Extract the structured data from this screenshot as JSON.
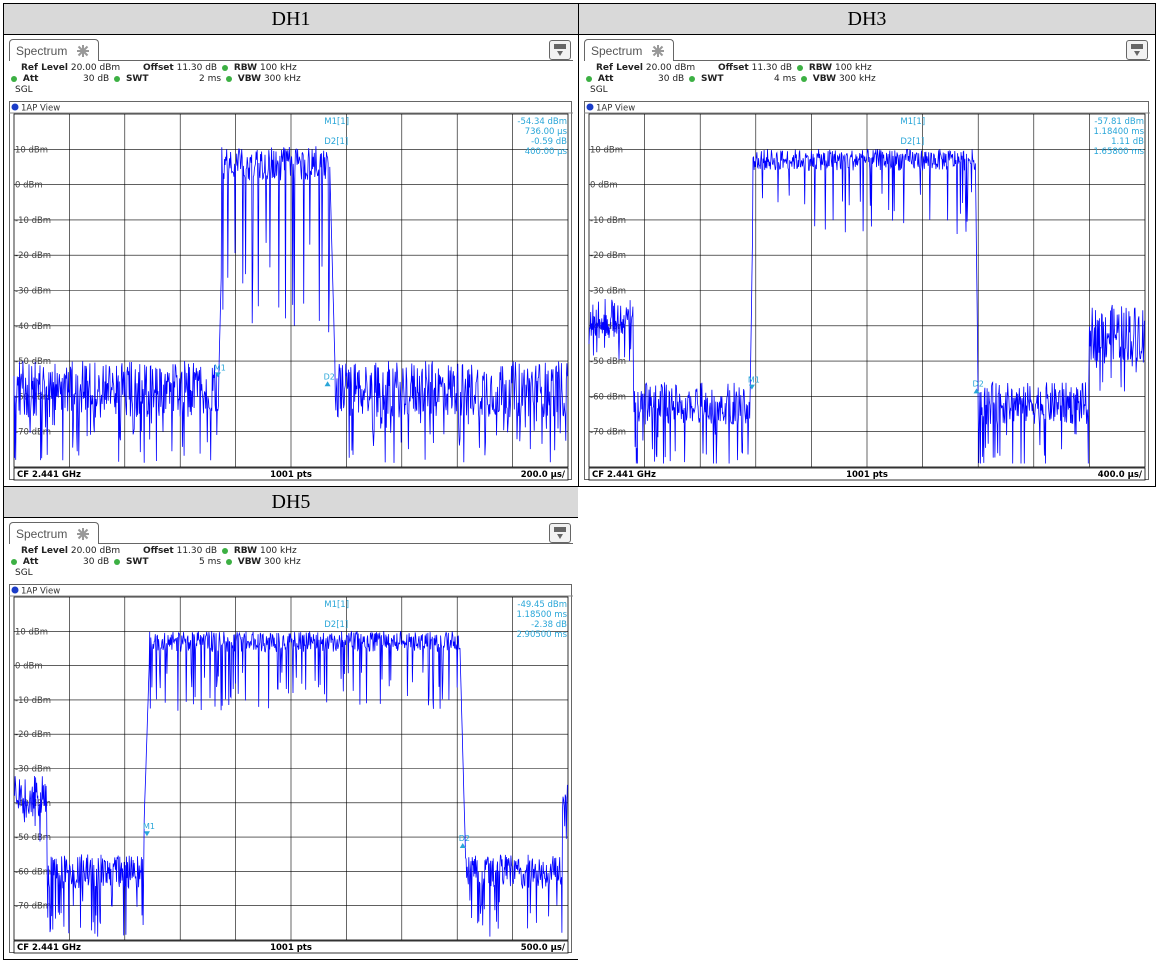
{
  "cells": [
    {
      "title": "DH1",
      "tab_label": "Spectrum",
      "ref_level_label": "Ref Level",
      "ref_level_value": "20.00 dBm",
      "offset_label": "Offset",
      "offset_value": "11.30 dB",
      "rbw_label": "RBW",
      "rbw_value": "100 kHz",
      "att_label": "Att",
      "att_value": "30 dB",
      "swt_label": "SWT",
      "swt_value": "2 ms",
      "vbw_label": "VBW",
      "vbw_value": "300 kHz",
      "mode_label": "SGL",
      "view_label": "1AP View",
      "cf_label": "CF 2.441 GHz",
      "pts_label": "1001 pts",
      "div_label": "200.0 µs/",
      "readout": {
        "m1_label": "M1[1]",
        "m1_level": "-54.34 dBm",
        "m1_time": "736.00 µs",
        "d2_label": "D2[1]",
        "d2_level": "-0.59 dB",
        "d2_time": "400.00 µs"
      },
      "chart_data": {
        "type": "line",
        "y_tick_labels": [
          "10 dBm",
          "0 dBm",
          "-10 dBm",
          "-20 dBm",
          "-30 dBm",
          "-40 dBm",
          "-50 dBm",
          "-60 dBm",
          "-70 dBm"
        ],
        "y_ticks": [
          10,
          0,
          -10,
          -20,
          -30,
          -40,
          -50,
          -60,
          -70
        ],
        "ylim": [
          -80,
          20
        ],
        "x_divisions": 10,
        "x_per_div": "200.0 µs/",
        "series": [
          {
            "segments": [
              {
                "from": 0.0,
                "to": 0.37,
                "mean": -58,
                "spread": 8,
                "dips": -15
              },
              {
                "from": 0.37,
                "to": 0.375,
                "ramp": [
                  -52,
                  -20
                ]
              },
              {
                "from": 0.375,
                "to": 0.57,
                "mean": 6,
                "spread": 5,
                "dips": -35
              },
              {
                "from": 0.57,
                "to": 0.58,
                "ramp": [
                  5,
                  -55
                ]
              },
              {
                "from": 0.58,
                "to": 1.0,
                "mean": -58,
                "spread": 8,
                "dips": -15
              }
            ],
            "color": "#0000ff"
          }
        ],
        "markers": [
          {
            "label": "M1",
            "x_frac": 0.368,
            "level": -54.34,
            "dir": "down"
          },
          {
            "label": "D2",
            "x_frac": 0.566,
            "level": -56,
            "dir": "up"
          }
        ],
        "marker_labels": {
          "M1": "M1",
          "D2": "D2"
        }
      }
    },
    {
      "title": "DH3",
      "tab_label": "Spectrum",
      "ref_level_label": "Ref Level",
      "ref_level_value": "20.00 dBm",
      "offset_label": "Offset",
      "offset_value": "11.30 dB",
      "rbw_label": "RBW",
      "rbw_value": "100 kHz",
      "att_label": "Att",
      "att_value": "30 dB",
      "swt_label": "SWT",
      "swt_value": "4 ms",
      "vbw_label": "VBW",
      "vbw_value": "300 kHz",
      "mode_label": "SGL",
      "view_label": "1AP View",
      "cf_label": "CF 2.441 GHz",
      "pts_label": "1001 pts",
      "div_label": "400.0 µs/",
      "readout": {
        "m1_label": "M1[1]",
        "m1_level": "-57.81 dBm",
        "m1_time": "1.18400 ms",
        "d2_label": "D2[1]",
        "d2_level": "1.11 dB",
        "d2_time": "1.65800 ms"
      },
      "chart_data": {
        "type": "line",
        "y_tick_labels": [
          "10 dBm",
          "0 dBm",
          "-10 dBm",
          "-20 dBm",
          "-30 dBm",
          "-40 dBm",
          "-50 dBm",
          "-60 dBm",
          "-70 dBm"
        ],
        "y_ticks": [
          10,
          0,
          -10,
          -20,
          -30,
          -40,
          -50,
          -60,
          -70
        ],
        "ylim": [
          -80,
          20
        ],
        "x_divisions": 10,
        "x_per_div": "400.0 µs/",
        "series": [
          {
            "segments": [
              {
                "from": 0.0,
                "to": 0.08,
                "mean": -38,
                "spread": 6,
                "dips": -10
              },
              {
                "from": 0.08,
                "to": 0.29,
                "mean": -62,
                "spread": 6,
                "dips": -14
              },
              {
                "from": 0.29,
                "to": 0.295,
                "ramp": [
                  -58,
                  -5
                ]
              },
              {
                "from": 0.295,
                "to": 0.695,
                "mean": 7,
                "spread": 3,
                "dips": -15
              },
              {
                "from": 0.695,
                "to": 0.7,
                "ramp": [
                  6,
                  -60
                ]
              },
              {
                "from": 0.7,
                "to": 0.9,
                "mean": -62,
                "spread": 6,
                "dips": -14
              },
              {
                "from": 0.9,
                "to": 1.0,
                "mean": -42,
                "spread": 8,
                "dips": -12
              }
            ],
            "color": "#0000ff"
          }
        ],
        "markers": [
          {
            "label": "M1",
            "x_frac": 0.293,
            "level": -57.81,
            "dir": "down"
          },
          {
            "label": "D2",
            "x_frac": 0.697,
            "level": -58,
            "dir": "up"
          }
        ],
        "marker_labels": {
          "M1": "M1",
          "D2": "D2"
        }
      }
    },
    {
      "title": "DH5",
      "tab_label": "Spectrum",
      "ref_level_label": "Ref Level",
      "ref_level_value": "20.00 dBm",
      "offset_label": "Offset",
      "offset_value": "11.30 dB",
      "rbw_label": "RBW",
      "rbw_value": "100 kHz",
      "att_label": "Att",
      "att_value": "30 dB",
      "swt_label": "SWT",
      "swt_value": "5 ms",
      "vbw_label": "VBW",
      "vbw_value": "300 kHz",
      "mode_label": "SGL",
      "view_label": "1AP View",
      "cf_label": "CF 2.441 GHz",
      "pts_label": "1001 pts",
      "div_label": "500.0 µs/",
      "readout": {
        "m1_label": "M1[1]",
        "m1_level": "-49.45 dBm",
        "m1_time": "1.18500 ms",
        "d2_label": "D2[1]",
        "d2_level": "-2.38 dB",
        "d2_time": "2.90500 ms"
      },
      "chart_data": {
        "type": "line",
        "y_tick_labels": [
          "10 dBm",
          "0 dBm",
          "-10 dBm",
          "-20 dBm",
          "-30 dBm",
          "-40 dBm",
          "-50 dBm",
          "-60 dBm",
          "-70 dBm"
        ],
        "y_ticks": [
          10,
          0,
          -10,
          -20,
          -30,
          -40,
          -50,
          -60,
          -70
        ],
        "ylim": [
          -80,
          20
        ],
        "x_divisions": 10,
        "x_per_div": "500.0 µs/",
        "series": [
          {
            "segments": [
              {
                "from": 0.0,
                "to": 0.06,
                "mean": -38,
                "spread": 6,
                "dips": -10
              },
              {
                "from": 0.06,
                "to": 0.235,
                "mean": -60,
                "spread": 5,
                "dips": -14
              },
              {
                "from": 0.235,
                "to": 0.245,
                "ramp": [
                  -45,
                  5
                ]
              },
              {
                "from": 0.245,
                "to": 0.805,
                "mean": 7,
                "spread": 3,
                "dips": -15
              },
              {
                "from": 0.805,
                "to": 0.815,
                "ramp": [
                  5,
                  -55
                ]
              },
              {
                "from": 0.815,
                "to": 0.99,
                "mean": -60,
                "spread": 5,
                "dips": -14
              },
              {
                "from": 0.99,
                "to": 1.0,
                "mean": -40,
                "spread": 8,
                "dips": -8
              }
            ],
            "color": "#0000ff"
          }
        ],
        "markers": [
          {
            "label": "M1",
            "x_frac": 0.24,
            "level": -49.45,
            "dir": "down"
          },
          {
            "label": "D2",
            "x_frac": 0.81,
            "level": -52,
            "dir": "up"
          }
        ],
        "marker_labels": {
          "M1": "M1",
          "D2": "D2"
        }
      }
    }
  ]
}
